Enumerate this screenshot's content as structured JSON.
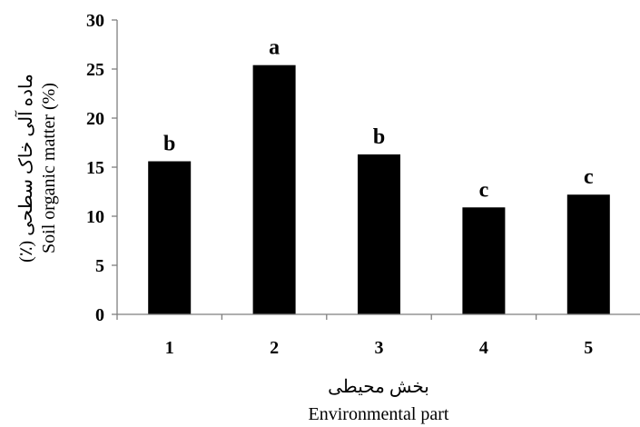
{
  "chart_data": {
    "type": "bar",
    "categories": [
      "1",
      "2",
      "3",
      "4",
      "5"
    ],
    "values": [
      15.6,
      25.4,
      16.3,
      10.9,
      12.2
    ],
    "significance_labels": [
      "b",
      "a",
      "b",
      "c",
      "c"
    ],
    "ylim": [
      0,
      30
    ],
    "yticks": [
      "0",
      "5",
      "10",
      "15",
      "20",
      "25",
      "30"
    ],
    "ylabel_fa": "ماده آلی خاک سطحی (٪)",
    "ylabel": "Soil organic matter (%)",
    "xlabel_fa": "بخش محیطی",
    "xlabel": "Environmental part",
    "grid": false,
    "bar_color": "#000000"
  }
}
